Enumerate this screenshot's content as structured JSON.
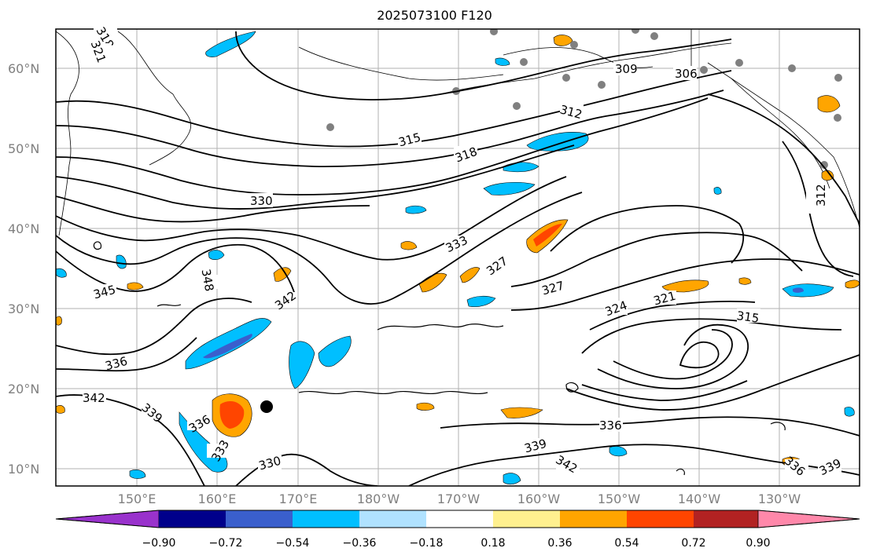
{
  "title": "2025073100 F120",
  "lat_labels": [
    "60°N",
    "50°N",
    "40°N",
    "30°N",
    "20°N",
    "10°N"
  ],
  "lon_labels": [
    "150°E",
    "160°E",
    "170°E",
    "180°W",
    "170°W",
    "160°W",
    "150°W",
    "140°W",
    "130°W"
  ],
  "contour_labels": [
    "318",
    "321",
    "309",
    "306",
    "312",
    "315",
    "318",
    "330",
    "333",
    "327",
    "327",
    "324",
    "321",
    "315",
    "312",
    "345",
    "348",
    "342",
    "336",
    "342",
    "339",
    "336",
    "333",
    "330",
    "336",
    "339",
    "342",
    "336",
    "339"
  ],
  "colorbar": {
    "colors": [
      "#9932cc",
      "#00008b",
      "#3a5fcd",
      "#00bfff",
      "#b0e2ff",
      "#ffffff",
      "#fff08f",
      "#ffa500",
      "#ff4500",
      "#b22222",
      "#ff88aa"
    ],
    "tick_labels": [
      "−0.90",
      "−0.72",
      "−0.54",
      "−0.36",
      "−0.18",
      "0.18",
      "0.36",
      "0.54",
      "0.72",
      "0.90"
    ]
  },
  "colors": {
    "contour": "#000000",
    "grid": "#a0a0a0",
    "station": "#808080"
  }
}
